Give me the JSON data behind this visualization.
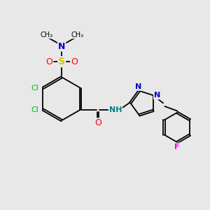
{
  "bg_color": "#e8e8e8",
  "bond_color": "#000000",
  "atom_colors": {
    "N": "#0000cc",
    "O": "#ff0000",
    "S": "#cccc00",
    "Cl": "#00bb00",
    "F": "#ee00ee",
    "NH": "#008080",
    "C": "#000000"
  },
  "font_size": 8,
  "line_width": 1.3
}
